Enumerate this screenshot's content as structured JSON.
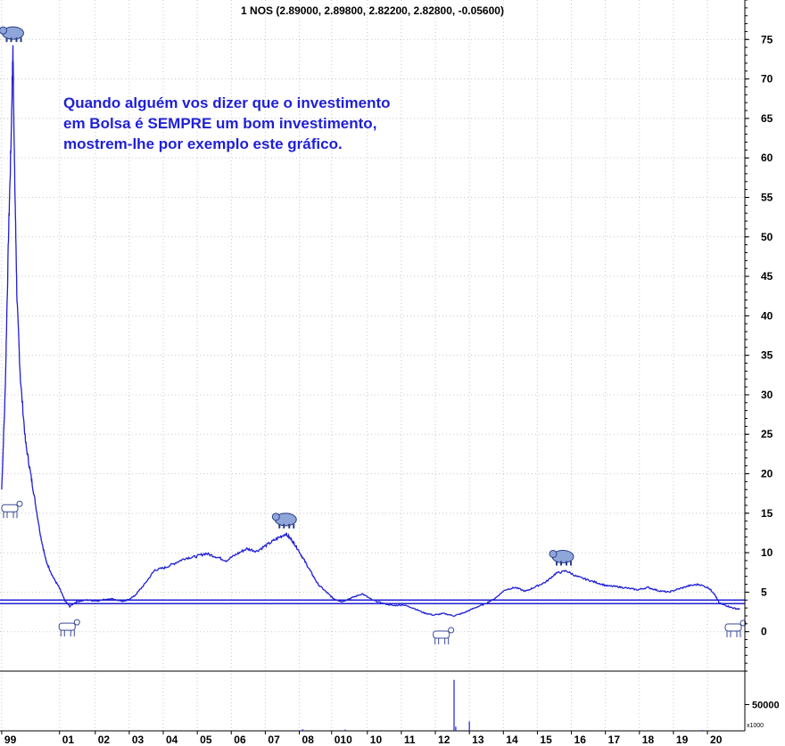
{
  "title": "1 NOS (2.89000, 2.89800, 2.82200, 2.82800, -0.05600)",
  "annotation": [
    "Quando alguém vos dizer que o investimento",
    "em Bolsa é SEMPRE um bom investimento,",
    "mostrem-lhe por exemplo este gráfico."
  ],
  "colors": {
    "price": "#1f1fd6",
    "support": "#1f1fd6",
    "grid": "#c8c8c8",
    "axis": "#000000"
  },
  "icons": {
    "peak": "bear-icon",
    "trough": "bull-icon"
  },
  "chart_data": {
    "type": "line",
    "y_axis": {
      "ticks": [
        0,
        5,
        10,
        15,
        20,
        25,
        30,
        35,
        40,
        45,
        50,
        55,
        60,
        65,
        70,
        75
      ],
      "ylim": [
        -5,
        80
      ]
    },
    "x_axis": {
      "labels": [
        "99",
        "01",
        "02",
        "03",
        "04",
        "05",
        "06",
        "07",
        "08",
        "010",
        "10",
        "11",
        "12",
        "13",
        "14",
        "15",
        "16",
        "17",
        "18",
        "19",
        "20"
      ],
      "positions": [
        1999,
        2000.7,
        2001.75,
        2002.75,
        2003.75,
        2004.75,
        2005.75,
        2006.75,
        2007.75,
        2008.7,
        2009.75,
        2010.75,
        2011.75,
        2012.75,
        2013.75,
        2014.75,
        2015.75,
        2016.75,
        2017.75,
        2018.75,
        2019.75
      ],
      "xlim": [
        1998.95,
        2020.85
      ]
    },
    "series": [
      {
        "values": [
          [
            1999.0,
            18
          ],
          [
            1999.1,
            30
          ],
          [
            1999.2,
            50
          ],
          [
            1999.28,
            63
          ],
          [
            1999.33,
            74
          ],
          [
            1999.38,
            58
          ],
          [
            1999.45,
            42
          ],
          [
            1999.55,
            32
          ],
          [
            1999.7,
            24
          ],
          [
            1999.85,
            20
          ],
          [
            2000.0,
            16
          ],
          [
            2000.15,
            12
          ],
          [
            2000.3,
            9
          ],
          [
            2000.5,
            7
          ],
          [
            2000.7,
            5.5
          ],
          [
            2000.85,
            4
          ],
          [
            2001.0,
            3.2
          ],
          [
            2001.2,
            3.8
          ],
          [
            2001.5,
            4
          ],
          [
            2001.8,
            3.9
          ],
          [
            2002.2,
            4.2
          ],
          [
            2002.6,
            3.8
          ],
          [
            2002.9,
            4.5
          ],
          [
            2003.2,
            6
          ],
          [
            2003.5,
            7.8
          ],
          [
            2003.8,
            8.1
          ],
          [
            2004.1,
            8.7
          ],
          [
            2004.4,
            9.3
          ],
          [
            2004.7,
            9.5
          ],
          [
            2005.0,
            9.9
          ],
          [
            2005.3,
            9.5
          ],
          [
            2005.6,
            9.0
          ],
          [
            2005.9,
            9.8
          ],
          [
            2006.2,
            10.5
          ],
          [
            2006.5,
            10.2
          ],
          [
            2006.8,
            11.0
          ],
          [
            2007.1,
            11.8
          ],
          [
            2007.35,
            12.4
          ],
          [
            2007.55,
            11.5
          ],
          [
            2007.7,
            10.5
          ],
          [
            2007.9,
            9.0
          ],
          [
            2008.1,
            7.5
          ],
          [
            2008.3,
            6.0
          ],
          [
            2008.55,
            5.0
          ],
          [
            2008.75,
            4.2
          ],
          [
            2009.0,
            3.8
          ],
          [
            2009.3,
            4.3
          ],
          [
            2009.6,
            4.8
          ],
          [
            2009.9,
            4.0
          ],
          [
            2010.2,
            3.6
          ],
          [
            2010.5,
            3.3
          ],
          [
            2010.8,
            3.4
          ],
          [
            2011.1,
            3.0
          ],
          [
            2011.4,
            2.4
          ],
          [
            2011.7,
            2.1
          ],
          [
            2012.0,
            2.3
          ],
          [
            2012.3,
            2.0
          ],
          [
            2012.6,
            2.4
          ],
          [
            2012.9,
            3.0
          ],
          [
            2013.2,
            3.5
          ],
          [
            2013.5,
            4.2
          ],
          [
            2013.8,
            5.3
          ],
          [
            2014.1,
            5.6
          ],
          [
            2014.4,
            5.1
          ],
          [
            2014.7,
            5.7
          ],
          [
            2015.0,
            6.3
          ],
          [
            2015.3,
            7.4
          ],
          [
            2015.6,
            7.7
          ],
          [
            2015.9,
            7.0
          ],
          [
            2016.2,
            6.6
          ],
          [
            2016.5,
            6.2
          ],
          [
            2016.8,
            5.8
          ],
          [
            2017.1,
            5.7
          ],
          [
            2017.4,
            5.5
          ],
          [
            2017.7,
            5.3
          ],
          [
            2018.0,
            5.6
          ],
          [
            2018.3,
            5.2
          ],
          [
            2018.6,
            5.0
          ],
          [
            2018.9,
            5.4
          ],
          [
            2019.2,
            5.8
          ],
          [
            2019.5,
            6.0
          ],
          [
            2019.8,
            5.5
          ],
          [
            2019.95,
            4.8
          ],
          [
            2020.1,
            3.6
          ],
          [
            2020.3,
            3.3
          ],
          [
            2020.5,
            3.0
          ],
          [
            2020.7,
            2.83
          ]
        ]
      }
    ],
    "support_lines": [
      4.0,
      3.55
    ],
    "peaks": [
      [
        1999.33,
        74
      ],
      [
        2007.35,
        12.4
      ],
      [
        2015.5,
        7.7
      ]
    ],
    "troughs": [
      [
        1999.0,
        18
      ],
      [
        2000.95,
        3.0
      ],
      [
        2011.95,
        2.0
      ],
      [
        2020.6,
        2.9
      ]
    ],
    "volume": {
      "ticks": [
        50000
      ],
      "ylim": [
        0,
        100000
      ],
      "unit_label": "x1000",
      "bars": [
        [
          1999.4,
          300
        ],
        [
          2007.85,
          3000
        ],
        [
          2009.1,
          2500
        ],
        [
          2012.3,
          97000
        ],
        [
          2012.35,
          8000
        ],
        [
          2012.75,
          18000
        ],
        [
          2019.6,
          1500
        ]
      ]
    }
  }
}
